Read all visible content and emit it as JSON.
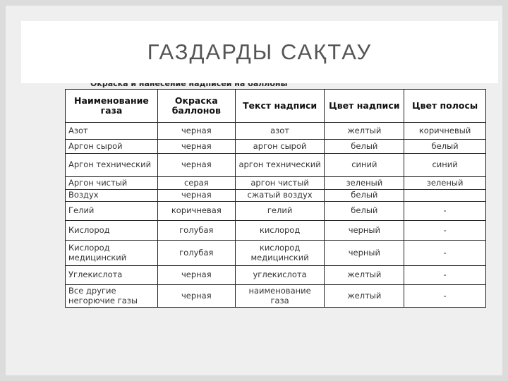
{
  "slide": {
    "title": "ГАЗДАРДЫ САҚТАУ",
    "caption": "Окраска и нанесение надписей на баллоны",
    "table": {
      "headers": [
        "Наименование газа",
        "Окраска баллонов",
        "Текст надписи",
        "Цвет надписи",
        "Цвет полосы"
      ],
      "rows": [
        [
          "Азот",
          "черная",
          "азот",
          "желтый",
          "коричневый"
        ],
        [
          "Аргон сырой",
          "черная",
          "аргон сырой",
          "белый",
          "белый"
        ],
        [
          "Аргон технический",
          "черная",
          "аргон технический",
          "синий",
          "синий"
        ],
        [
          "Аргон чистый",
          "серая",
          "аргон чистый",
          "зеленый",
          "зеленый"
        ],
        [
          "Воздух",
          "черная",
          "сжатый воздух",
          "белый",
          ""
        ],
        [
          "Гелий",
          "коричневая",
          "гелий",
          "белый",
          "-"
        ],
        [
          "Кислород",
          "голубая",
          "кислород",
          "черный",
          "-"
        ],
        [
          "Кислород медицинский",
          "голубая",
          "кислород медицинский",
          "черный",
          "-"
        ],
        [
          "Углекислота",
          "черная",
          "углекислота",
          "желтый",
          "-"
        ],
        [
          "Все другие негорючие газы",
          "черная",
          "наименование газа",
          "желтый",
          "-"
        ]
      ]
    }
  }
}
